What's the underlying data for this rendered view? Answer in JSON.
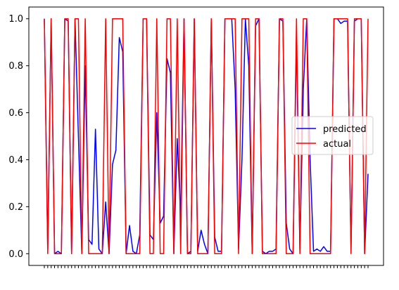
{
  "chart_data": {
    "type": "line",
    "title": "",
    "xlabel": "",
    "ylabel": "",
    "ylim": [
      -0.05,
      1.05
    ],
    "yticks": [
      "0.0",
      "0.2",
      "0.4",
      "0.6",
      "0.8",
      "1.0"
    ],
    "ytick_values": [
      0.0,
      0.2,
      0.4,
      0.6,
      0.8,
      1.0
    ],
    "grid": false,
    "legend_position": "center-right",
    "series": [
      {
        "name": "predicted",
        "color": "#0000ff",
        "values": [
          1.0,
          0.02,
          1.0,
          0.0,
          0.01,
          0.0,
          1.0,
          0.99,
          0.0,
          1.0,
          0.5,
          0.0,
          0.8,
          0.06,
          0.04,
          0.53,
          0.02,
          0.0,
          0.22,
          0.0,
          0.38,
          0.44,
          0.92,
          0.86,
          0.0,
          0.12,
          0.01,
          0.0,
          0.08,
          1.0,
          1.0,
          0.08,
          0.06,
          0.6,
          0.13,
          0.16,
          0.83,
          0.77,
          0.0,
          0.49,
          0.16,
          1.0,
          0.0,
          0.01,
          1.0,
          0.01,
          0.1,
          0.04,
          0.0,
          1.0,
          0.07,
          0.01,
          0.01,
          1.0,
          1.0,
          1.0,
          0.7,
          0.02,
          0.4,
          1.0,
          0.8,
          0.0,
          0.97,
          1.0,
          0.01,
          0.0,
          0.01,
          0.01,
          0.02,
          1.0,
          0.99,
          0.13,
          0.02,
          0.0,
          0.92,
          0.02,
          0.7,
          1.0,
          0.4,
          0.01,
          0.02,
          0.01,
          0.03,
          0.01,
          0.01,
          1.0,
          1.0,
          0.98,
          0.99,
          0.99,
          0.01,
          0.99,
          1.0,
          1.0,
          0.0,
          0.34
        ]
      },
      {
        "name": "actual",
        "color": "#ff0000",
        "values": [
          1,
          0,
          1,
          0,
          0,
          0,
          1,
          1,
          0,
          1,
          1,
          0,
          1,
          0,
          0,
          0,
          0,
          0,
          1,
          0,
          1,
          1,
          1,
          1,
          0,
          0,
          0,
          0,
          0,
          1,
          1,
          0,
          0,
          1,
          0,
          0,
          1,
          1,
          0,
          1,
          0,
          1,
          0,
          0,
          1,
          0,
          0,
          0,
          0,
          1,
          0,
          0,
          0,
          1,
          1,
          1,
          1,
          0,
          1,
          1,
          1,
          0,
          1,
          1,
          0,
          0,
          0,
          0,
          0,
          1,
          1,
          0,
          0,
          0,
          1,
          0,
          1,
          1,
          0,
          0,
          0,
          0,
          0,
          0,
          0,
          1,
          1,
          1,
          1,
          1,
          0,
          1,
          1,
          1,
          0,
          1
        ]
      }
    ]
  }
}
